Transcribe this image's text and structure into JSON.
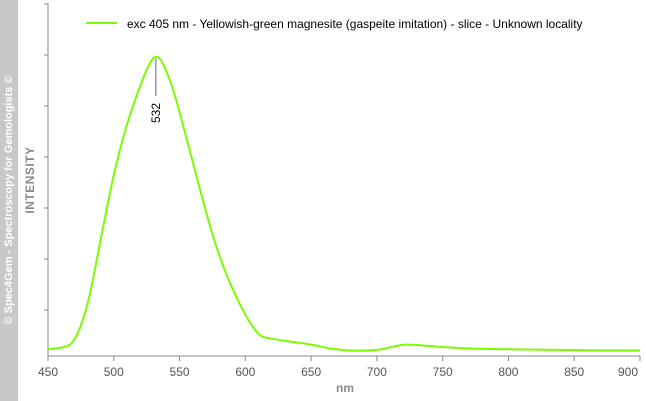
{
  "watermark": "© Spec4Gem - Spectroscopy for Gemologists ©",
  "colors": {
    "series": "#7cfc00",
    "axis": "#888888",
    "tick_text": "#555555",
    "band": "#c8c8c8"
  },
  "chart_data": {
    "type": "line",
    "title": "",
    "xlabel": "nm",
    "ylabel": "INTENSITY",
    "xlim": [
      450,
      900
    ],
    "ylim": [
      0,
      1
    ],
    "xticks": [
      450,
      500,
      550,
      600,
      650,
      700,
      750,
      800,
      850,
      900
    ],
    "grid": false,
    "legend_position": "top",
    "series": [
      {
        "name": "exc 405 nm - Yellowish-green magnesite (gaspeite imitation) - slice - Unknown locality",
        "color": "#7cfc00",
        "x": [
          450,
          460,
          468,
          475,
          482,
          490,
          500,
          510,
          520,
          527,
          532,
          537,
          545,
          555,
          565,
          575,
          585,
          595,
          605,
          612,
          620,
          635,
          650,
          665,
          680,
          700,
          712,
          722,
          735,
          750,
          770,
          790,
          820,
          860,
          900
        ],
        "y": [
          0.01,
          0.015,
          0.03,
          0.09,
          0.2,
          0.38,
          0.6,
          0.77,
          0.9,
          0.975,
          1.0,
          0.98,
          0.89,
          0.73,
          0.56,
          0.4,
          0.27,
          0.17,
          0.09,
          0.055,
          0.045,
          0.035,
          0.025,
          0.012,
          0.005,
          0.007,
          0.018,
          0.025,
          0.022,
          0.017,
          0.012,
          0.01,
          0.008,
          0.006,
          0.005
        ]
      }
    ],
    "annotations": [
      {
        "x": 532,
        "label": "532"
      }
    ]
  }
}
